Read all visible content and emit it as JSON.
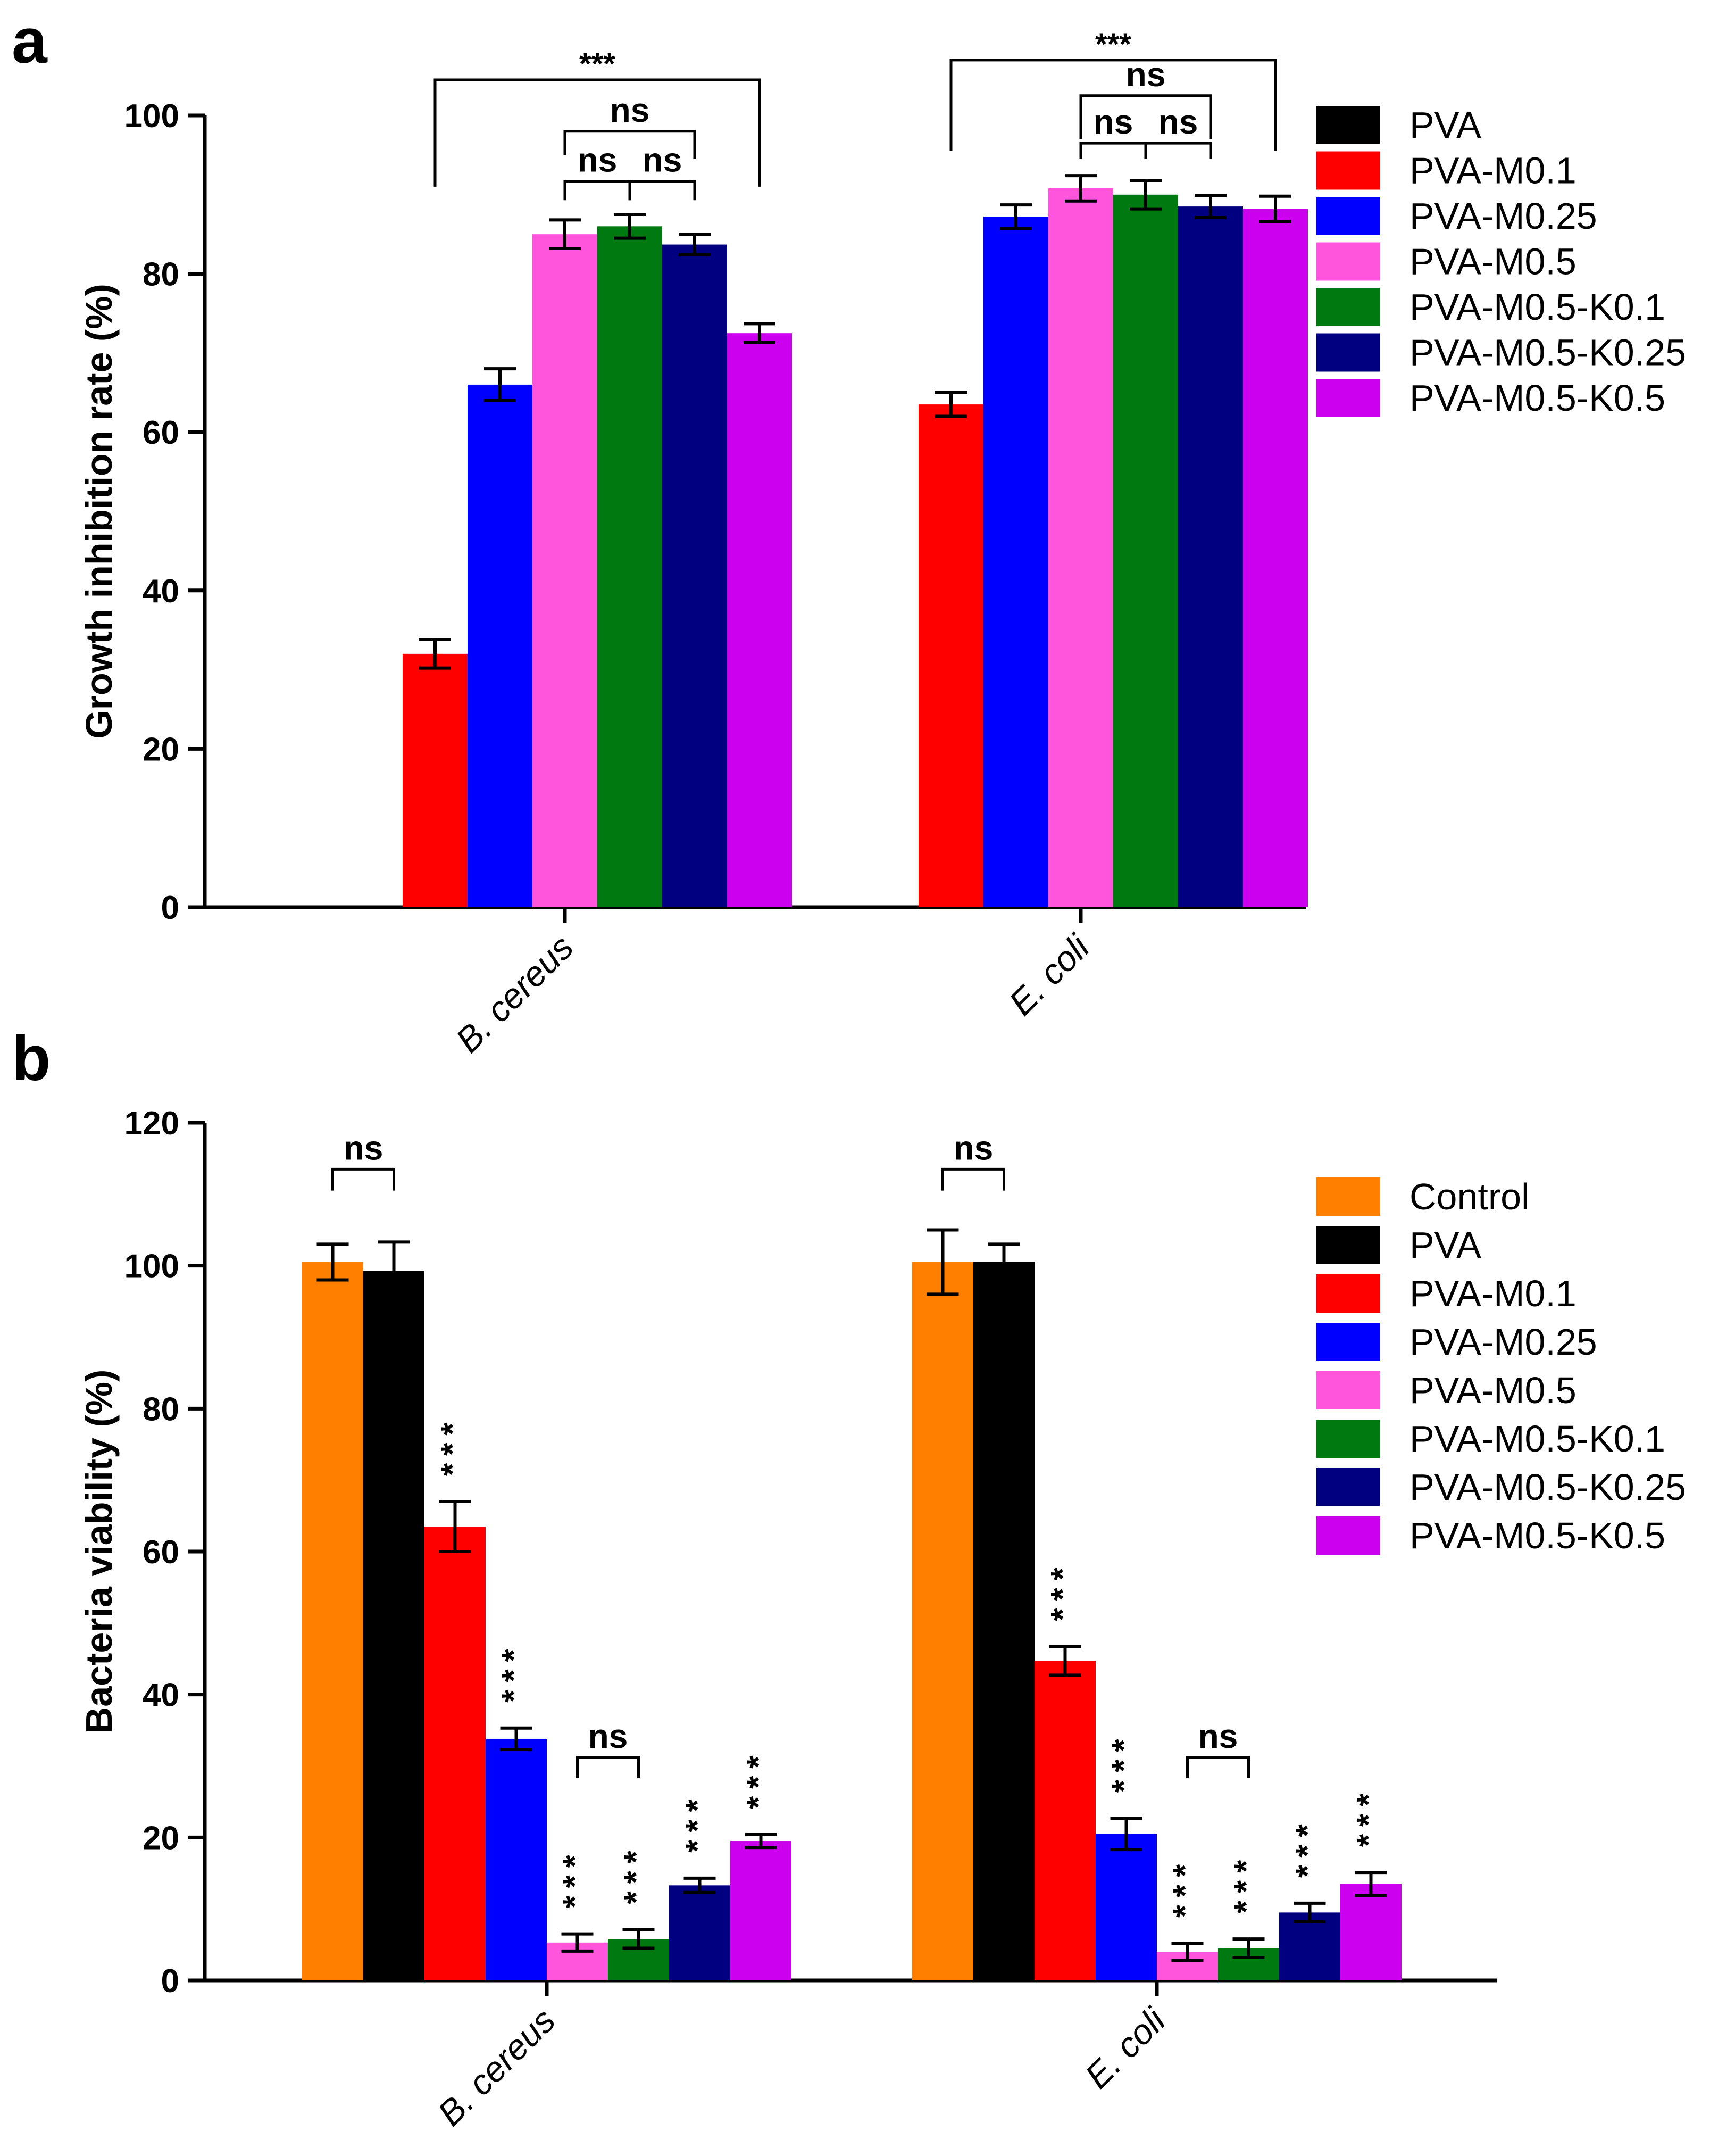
{
  "panel_labels": {
    "a": "a",
    "b": "b"
  },
  "chart_data": [
    {
      "id": "a",
      "type": "bar",
      "ylabel": "Growth inhibition rate (%)",
      "ylim": [
        0,
        100
      ],
      "yticks": [
        0,
        20,
        40,
        60,
        80,
        100
      ],
      "categories": [
        "B. cereus",
        "E. coli"
      ],
      "legend": [
        "PVA",
        "PVA-M0.1",
        "PVA-M0.25",
        "PVA-M0.5",
        "PVA-M0.5-K0.1",
        "PVA-M0.5-K0.25",
        "PVA-M0.5-K0.5"
      ],
      "colors": [
        "#000000",
        "#ff0000",
        "#0000ff",
        "#ff55dd",
        "#007a10",
        "#000080",
        "#cc00ee"
      ],
      "series": [
        {
          "name": "PVA",
          "values": [
            0,
            0
          ],
          "errors": [
            0,
            0
          ]
        },
        {
          "name": "PVA-M0.1",
          "values": [
            32,
            63.5
          ],
          "errors": [
            1.8,
            1.5
          ]
        },
        {
          "name": "PVA-M0.25",
          "values": [
            66,
            87.2
          ],
          "errors": [
            2.0,
            1.5
          ]
        },
        {
          "name": "PVA-M0.5",
          "values": [
            85,
            90.8
          ],
          "errors": [
            1.8,
            1.6
          ]
        },
        {
          "name": "PVA-M0.5-K0.1",
          "values": [
            86,
            90
          ],
          "errors": [
            1.5,
            1.8
          ]
        },
        {
          "name": "PVA-M0.5-K0.25",
          "values": [
            83.7,
            88.5
          ],
          "errors": [
            1.3,
            1.4
          ]
        },
        {
          "name": "PVA-M0.5-K0.5",
          "values": [
            72.5,
            88.2
          ],
          "errors": [
            1.2,
            1.6
          ]
        }
      ],
      "significance": [
        {
          "label": "***",
          "cat": 0,
          "from": 1,
          "to": 6
        },
        {
          "label": "ns",
          "cat": 0,
          "from": 3,
          "to": 5
        },
        {
          "label": "ns",
          "cat": 0,
          "from": 3,
          "to": 4
        },
        {
          "label": "ns",
          "cat": 0,
          "from": 4,
          "to": 5
        },
        {
          "label": "***",
          "cat": 1,
          "from": 1,
          "to": 6
        },
        {
          "label": "ns",
          "cat": 1,
          "from": 3,
          "to": 5
        },
        {
          "label": "ns",
          "cat": 1,
          "from": 3,
          "to": 4
        },
        {
          "label": "ns",
          "cat": 1,
          "from": 4,
          "to": 5
        }
      ]
    },
    {
      "id": "b",
      "type": "bar",
      "ylabel": "Bacteria viability (%)",
      "ylim": [
        0,
        120
      ],
      "yticks": [
        0,
        20,
        40,
        60,
        80,
        100,
        120
      ],
      "categories": [
        "B. cereus",
        "E. coli"
      ],
      "legend": [
        "Control",
        "PVA",
        "PVA-M0.1",
        "PVA-M0.25",
        "PVA-M0.5",
        "PVA-M0.5-K0.1",
        "PVA-M0.5-K0.25",
        "PVA-M0.5-K0.5"
      ],
      "colors": [
        "#ff8000",
        "#000000",
        "#ff0000",
        "#0000ff",
        "#ff55dd",
        "#007a10",
        "#000080",
        "#cc00ee"
      ],
      "series": [
        {
          "name": "Control",
          "values": [
            100.5,
            100.5
          ],
          "errors": [
            2.5,
            4.5
          ],
          "stars": [
            "",
            ""
          ]
        },
        {
          "name": "PVA",
          "values": [
            99.3,
            100.5
          ],
          "errors": [
            4.0,
            2.5
          ],
          "stars": [
            "",
            ""
          ]
        },
        {
          "name": "PVA-M0.1",
          "values": [
            63.5,
            44.7
          ],
          "errors": [
            3.5,
            2.0
          ],
          "stars": [
            "***",
            "***"
          ]
        },
        {
          "name": "PVA-M0.25",
          "values": [
            33.8,
            20.5
          ],
          "errors": [
            1.5,
            2.2
          ],
          "stars": [
            "***",
            "***"
          ]
        },
        {
          "name": "PVA-M0.5",
          "values": [
            5.3,
            4.0
          ],
          "errors": [
            1.2,
            1.2
          ],
          "stars": [
            "***",
            "***"
          ]
        },
        {
          "name": "PVA-M0.5-K0.1",
          "values": [
            5.8,
            4.5
          ],
          "errors": [
            1.3,
            1.3
          ],
          "stars": [
            "***",
            "***"
          ]
        },
        {
          "name": "PVA-M0.5-K0.25",
          "values": [
            13.3,
            9.5
          ],
          "errors": [
            1.0,
            1.3
          ],
          "stars": [
            "***",
            "***"
          ]
        },
        {
          "name": "PVA-M0.5-K0.5",
          "values": [
            19.5,
            13.5
          ],
          "errors": [
            0.9,
            1.6
          ],
          "stars": [
            "***",
            "***"
          ]
        }
      ],
      "significance": [
        {
          "label": "ns",
          "cat": 0,
          "from": 0,
          "to": 1
        },
        {
          "label": "ns",
          "cat": 0,
          "from": 4,
          "to": 5
        },
        {
          "label": "ns",
          "cat": 1,
          "from": 0,
          "to": 1
        },
        {
          "label": "ns",
          "cat": 1,
          "from": 4,
          "to": 5
        }
      ]
    }
  ]
}
